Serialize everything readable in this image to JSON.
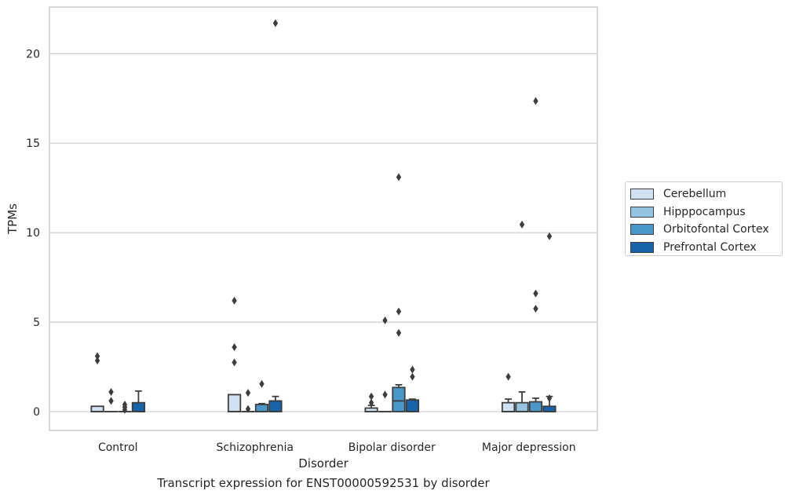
{
  "chart_data": {
    "type": "box",
    "caption": "Transcript expression for ENST00000592531 by disorder",
    "xlabel": "Disorder",
    "ylabel": "TPMs",
    "ylim": [
      -1.05,
      22.6
    ],
    "yticks": [
      0,
      5,
      10,
      15,
      20
    ],
    "grid": "horizontal",
    "legend_position": "right",
    "categories": [
      "Control",
      "Schizophrenia",
      "Bipolar disorder",
      "Major depression"
    ],
    "series": [
      {
        "name": "Cerebellum",
        "color": "#d0e1f2",
        "boxes": [
          {
            "q1": 0.0,
            "median": 0.0,
            "q3": 0.3,
            "whisker_low": 0.0,
            "whisker_high": 0.3,
            "outliers": [
              2.85,
              3.1
            ]
          },
          {
            "q1": 0.0,
            "median": 0.0,
            "q3": 0.95,
            "whisker_low": 0.0,
            "whisker_high": 0.95,
            "outliers": [
              2.75,
              3.6,
              6.2
            ]
          },
          {
            "q1": 0.0,
            "median": 0.0,
            "q3": 0.2,
            "whisker_low": 0.0,
            "whisker_high": 0.35,
            "outliers": [
              0.5,
              0.85
            ]
          },
          {
            "q1": 0.0,
            "median": 0.0,
            "q3": 0.5,
            "whisker_low": 0.0,
            "whisker_high": 0.7,
            "outliers": [
              1.95
            ]
          }
        ]
      },
      {
        "name": "Hipppocampus",
        "color": "#94c4df",
        "boxes": [
          {
            "q1": 0.0,
            "median": 0.0,
            "q3": 0.0,
            "whisker_low": 0.0,
            "whisker_high": 0.0,
            "outliers": [
              0.6,
              1.1
            ]
          },
          {
            "q1": 0.0,
            "median": 0.0,
            "q3": 0.0,
            "whisker_low": 0.0,
            "whisker_high": 0.0,
            "outliers": [
              0.15,
              1.05
            ]
          },
          {
            "q1": 0.0,
            "median": 0.0,
            "q3": 0.0,
            "whisker_low": 0.0,
            "whisker_high": 0.0,
            "outliers": [
              0.95,
              5.1
            ]
          },
          {
            "q1": 0.0,
            "median": 0.0,
            "q3": 0.5,
            "whisker_low": 0.0,
            "whisker_high": 1.1,
            "outliers": [
              10.45
            ]
          }
        ]
      },
      {
        "name": "Orbitofontal Cortex",
        "color": "#4a98c9",
        "boxes": [
          {
            "q1": 0.0,
            "median": 0.0,
            "q3": 0.0,
            "whisker_low": 0.0,
            "whisker_high": 0.0,
            "outliers": [
              0.1,
              0.25,
              0.4
            ]
          },
          {
            "q1": 0.0,
            "median": 0.0,
            "q3": 0.4,
            "whisker_low": 0.0,
            "whisker_high": 0.45,
            "outliers": [
              1.55
            ]
          },
          {
            "q1": 0.0,
            "median": 0.6,
            "q3": 1.35,
            "whisker_low": 0.0,
            "whisker_high": 1.5,
            "outliers": [
              4.4,
              5.6,
              13.1
            ]
          },
          {
            "q1": 0.0,
            "median": 0.0,
            "q3": 0.55,
            "whisker_low": 0.0,
            "whisker_high": 0.75,
            "outliers": [
              5.75,
              6.6,
              17.35
            ]
          }
        ]
      },
      {
        "name": "Prefrontal Cortex",
        "color": "#1764ab",
        "boxes": [
          {
            "q1": 0.0,
            "median": 0.0,
            "q3": 0.5,
            "whisker_low": 0.0,
            "whisker_high": 1.15,
            "outliers": []
          },
          {
            "q1": 0.0,
            "median": 0.0,
            "q3": 0.6,
            "whisker_low": 0.0,
            "whisker_high": 0.85,
            "outliers": [
              21.7
            ]
          },
          {
            "q1": 0.0,
            "median": 0.0,
            "q3": 0.65,
            "whisker_low": 0.0,
            "whisker_high": 0.7,
            "outliers": [
              1.95,
              2.35
            ]
          },
          {
            "q1": 0.0,
            "median": 0.0,
            "q3": 0.3,
            "whisker_low": 0.0,
            "whisker_high": 0.85,
            "outliers": [
              0.75,
              9.8
            ]
          }
        ]
      }
    ]
  }
}
